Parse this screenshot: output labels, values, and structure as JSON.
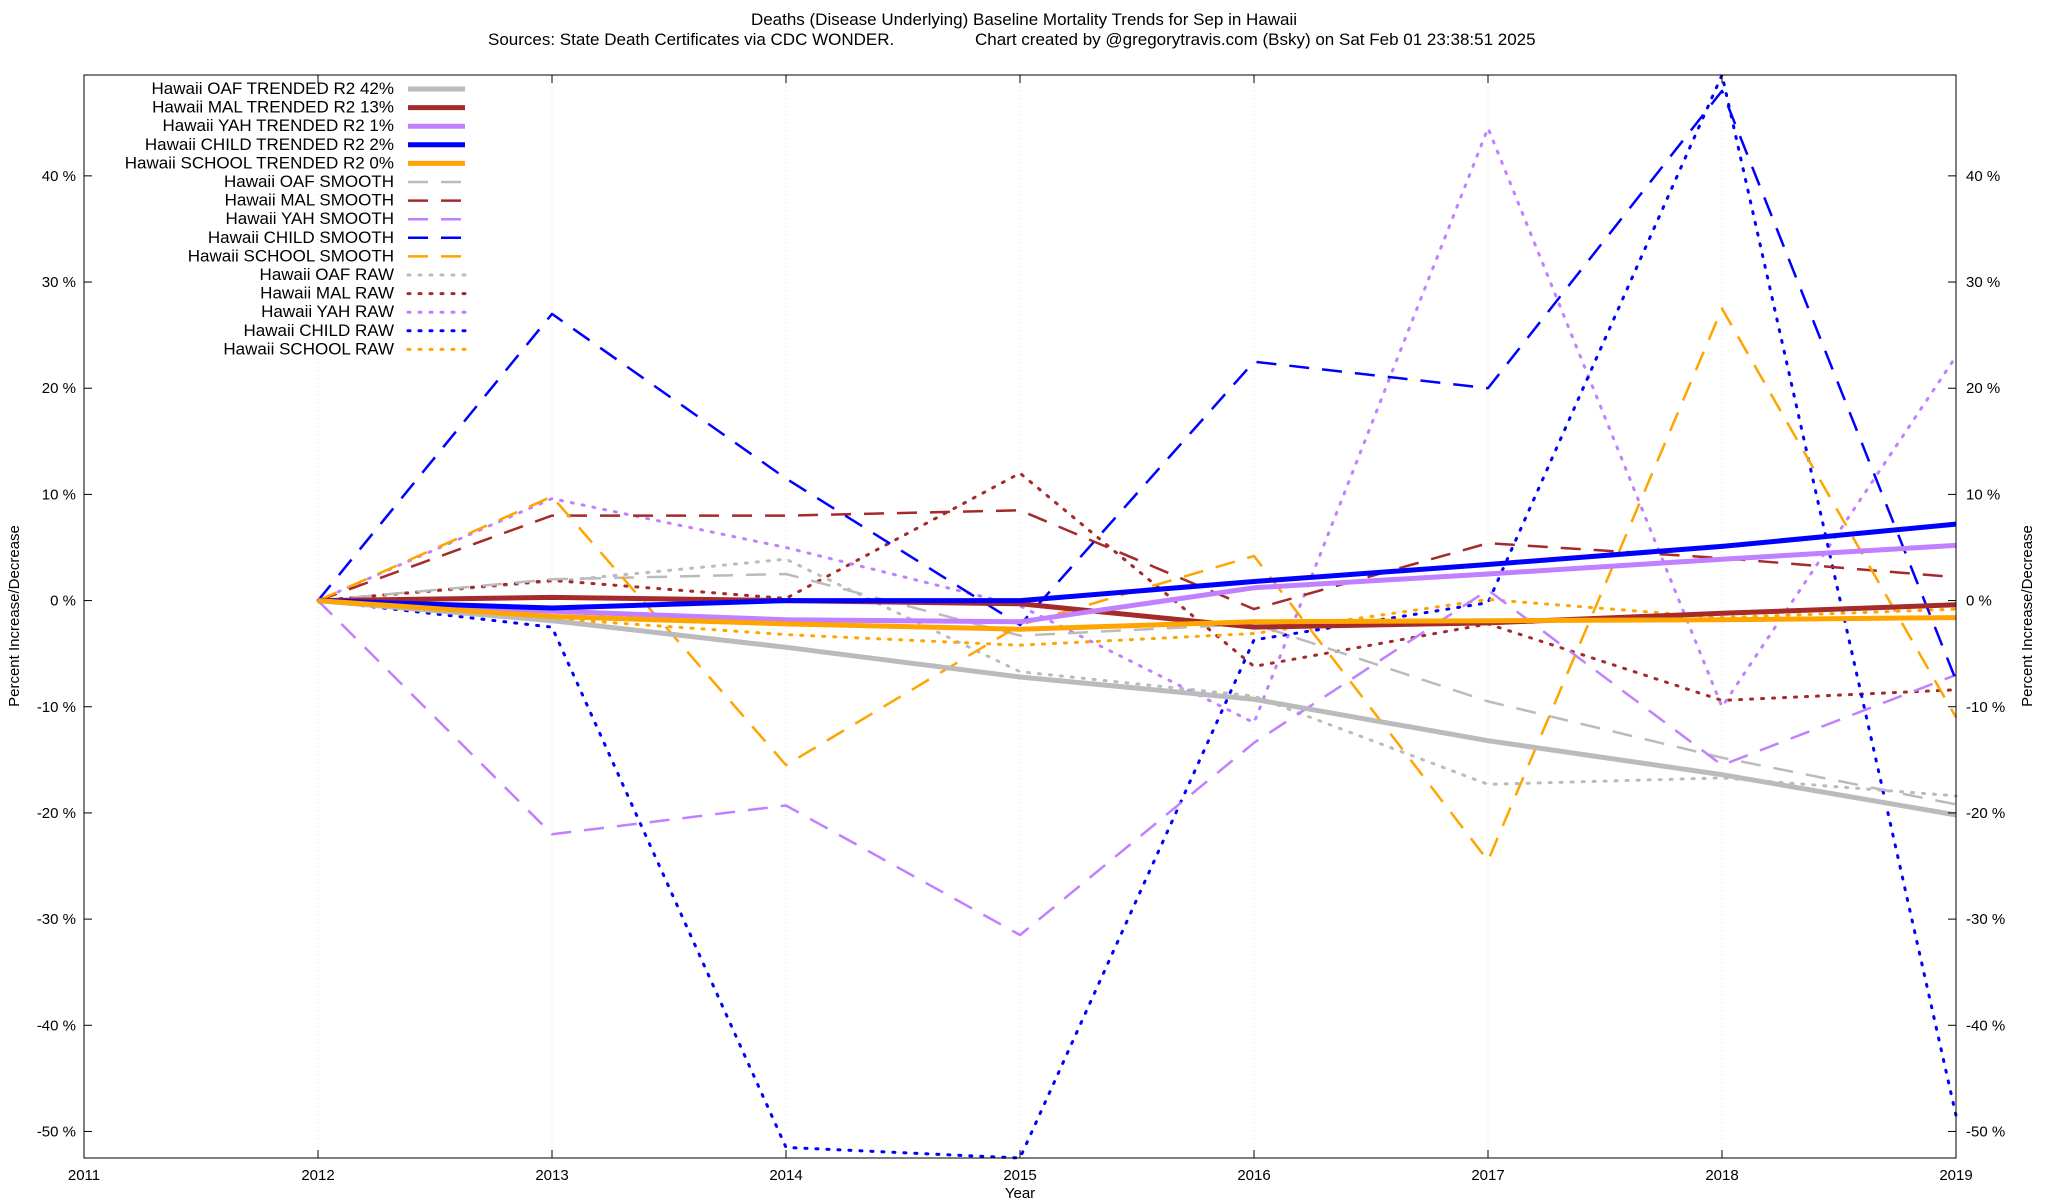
{
  "chart_data": {
    "type": "line",
    "title": "Deaths (Disease Underlying)  Baseline Mortality Trends for Sep in Hawaii",
    "subtitle_left": "Sources: State Death Certificates via CDC WONDER.",
    "subtitle_right": "Chart created by @gregorytravis.com (Bsky) on Sat Feb 01 23:38:51 2025",
    "xlabel": "Year",
    "ylabel": "Percent Increase/Decrease",
    "xlim": [
      2011,
      2019
    ],
    "ylim": [
      -52.5,
      49.5
    ],
    "x_ticks": [
      2011,
      2012,
      2013,
      2014,
      2015,
      2016,
      2017,
      2018,
      2019
    ],
    "x_tick_labels": [
      "2011",
      "2012",
      "2013",
      "2014",
      "2015",
      "2016",
      "2017",
      "2018",
      "2019"
    ],
    "y_ticks": [
      -50,
      -40,
      -30,
      -20,
      -10,
      0,
      10,
      20,
      30,
      40
    ],
    "y_tick_labels": [
      "-50 %",
      "-40 %",
      "-30 %",
      "-20 %",
      "-10 %",
      "0 %",
      "10 %",
      "20 %",
      "30 %",
      "40 %"
    ],
    "legend_position": "top-left",
    "x": [
      2012,
      2013,
      2014,
      2015,
      2016,
      2017,
      2018,
      2019
    ],
    "series": [
      {
        "name": "Hawaii OAF TRENDED R2  42%",
        "style": "trend",
        "color": "#bbbbbb",
        "values": [
          0,
          -1.9,
          -4.4,
          -7.2,
          -9.3,
          -13.2,
          -16.4,
          -20.2
        ]
      },
      {
        "name": "Hawaii MAL TRENDED R2  13%",
        "style": "trend",
        "color": "#a52a2a",
        "values": [
          0,
          0.3,
          0.0,
          -0.3,
          -2.5,
          -2.1,
          -1.2,
          -0.4
        ]
      },
      {
        "name": "Hawaii YAH TRENDED R2   1%",
        "style": "trend",
        "color": "#c080ff",
        "values": [
          0,
          -1.0,
          -1.8,
          -2.0,
          1.2,
          2.5,
          3.9,
          5.2
        ]
      },
      {
        "name": "Hawaii CHILD TRENDED R2   2%",
        "style": "trend",
        "color": "#0000ff",
        "values": [
          0,
          -0.7,
          0.0,
          0.0,
          1.8,
          3.4,
          5.1,
          7.2
        ]
      },
      {
        "name": "Hawaii SCHOOL TRENDED R2   0%",
        "style": "trend",
        "color": "#ffa500",
        "values": [
          0,
          -1.5,
          -2.2,
          -2.7,
          -2.0,
          -1.9,
          -1.8,
          -1.6
        ]
      },
      {
        "name": "Hawaii OAF SMOOTH",
        "style": "smooth",
        "color": "#bbbbbb",
        "values": [
          0,
          2.0,
          2.5,
          -3.3,
          -2.2,
          -9.5,
          -14.8,
          -19.2
        ]
      },
      {
        "name": "Hawaii MAL SMOOTH",
        "style": "smooth",
        "color": "#a52a2a",
        "values": [
          0,
          8.0,
          8.0,
          8.5,
          -0.8,
          5.4,
          4.0,
          2.2
        ]
      },
      {
        "name": "Hawaii YAH SMOOTH",
        "style": "smooth",
        "color": "#c080ff",
        "values": [
          0,
          -22.0,
          -19.3,
          -31.5,
          -13.4,
          1.0,
          -15.5,
          -7.0
        ]
      },
      {
        "name": "Hawaii CHILD SMOOTH",
        "style": "smooth",
        "color": "#0000ff",
        "values": [
          0,
          27.0,
          11.5,
          -2.3,
          22.5,
          20.0,
          48.0,
          -7.5
        ]
      },
      {
        "name": "Hawaii SCHOOL SMOOTH",
        "style": "smooth",
        "color": "#ffa500",
        "values": [
          0,
          9.8,
          -15.5,
          -2.3,
          4.2,
          -24.5,
          27.5,
          -11.0
        ]
      },
      {
        "name": "Hawaii OAF RAW",
        "style": "raw",
        "color": "#bbbbbb",
        "values": [
          0,
          1.8,
          3.9,
          -6.7,
          -9.0,
          -17.3,
          -16.7,
          -18.4
        ]
      },
      {
        "name": "Hawaii MAL RAW",
        "style": "raw",
        "color": "#a52a2a",
        "values": [
          0,
          1.9,
          0.2,
          12.0,
          -6.2,
          -2.2,
          -9.4,
          -8.4
        ]
      },
      {
        "name": "Hawaii YAH RAW",
        "style": "raw",
        "color": "#c080ff",
        "values": [
          0,
          9.6,
          5.0,
          -0.5,
          -11.5,
          44.5,
          -10.0,
          23.0
        ]
      },
      {
        "name": "Hawaii CHILD RAW",
        "style": "raw",
        "color": "#0000ff",
        "values": [
          0,
          -2.5,
          -51.5,
          -52.5,
          -3.7,
          -0.2,
          49.5,
          -48.5
        ]
      },
      {
        "name": "Hawaii SCHOOL RAW",
        "style": "raw",
        "color": "#ffa500",
        "values": [
          0,
          -1.7,
          -3.2,
          -4.2,
          -3.1,
          0.1,
          -1.6,
          -0.8
        ]
      }
    ]
  }
}
